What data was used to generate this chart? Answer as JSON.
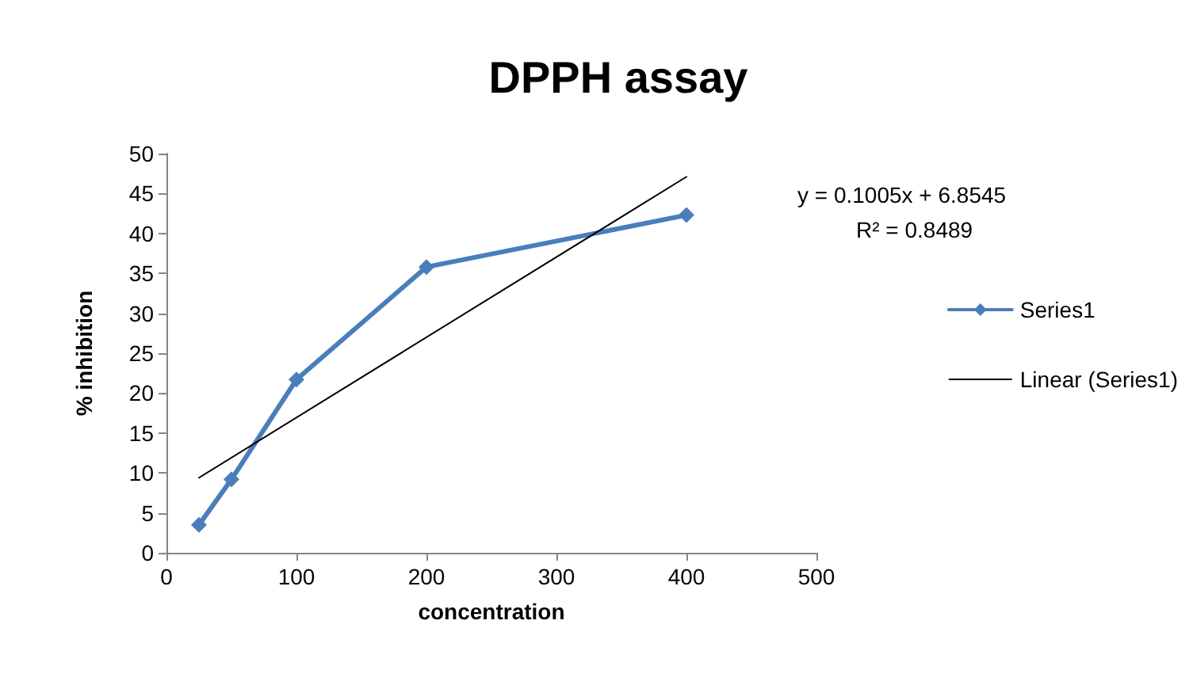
{
  "chart_data": {
    "type": "line",
    "title": "DPPH assay",
    "xlabel": "concentration",
    "ylabel": "% inhibition",
    "x": [
      25,
      50,
      100,
      200,
      400
    ],
    "series": [
      {
        "name": "Series1",
        "color": "#4a7ebb",
        "values": [
          3.5,
          9.2,
          21.7,
          35.8,
          42.3
        ],
        "marker": "diamond"
      },
      {
        "name": "Linear (Series1)",
        "type": "line",
        "color": "#000000",
        "x": [
          25,
          400
        ],
        "values": [
          9.4,
          47.1
        ],
        "marker": "none"
      }
    ],
    "xlim": [
      0,
      500
    ],
    "xticks": [
      0,
      100,
      200,
      300,
      400,
      500
    ],
    "ylim": [
      0,
      50
    ],
    "yticks": [
      0,
      5,
      10,
      15,
      20,
      25,
      30,
      35,
      40,
      45,
      50
    ],
    "grid": false,
    "legend": "right",
    "line_style": "solid",
    "annotations": [
      "y = 0.1005x + 6.8545",
      "R² = 0.8489"
    ]
  }
}
